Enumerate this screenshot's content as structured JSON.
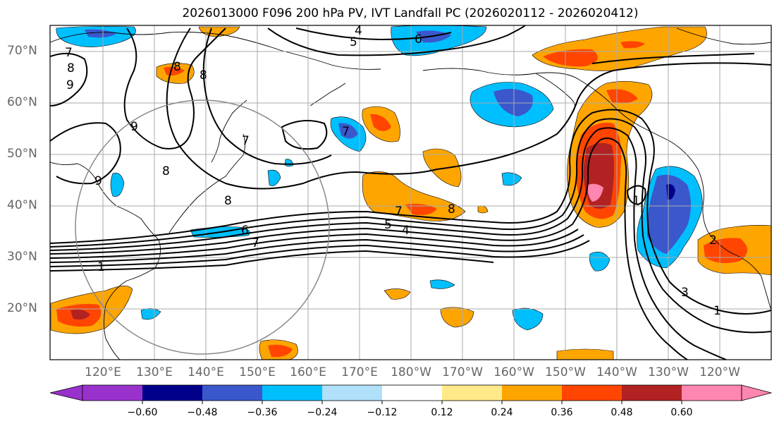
{
  "title": "2026013000 F096 200 hPa PV, IVT Landfall PC (2026020112 - 2026020412)",
  "latitude_labels": [
    "70°N",
    "60°N",
    "50°N",
    "40°N",
    "30°N",
    "20°N"
  ],
  "longitude_labels": [
    "120°E",
    "130°E",
    "140°E",
    "150°E",
    "160°E",
    "170°E",
    "180°W",
    "170°W",
    "160°W",
    "150°W",
    "140°W",
    "130°W",
    "120°W"
  ],
  "colorbar": {
    "colors": [
      "#9932cc",
      "#00008b",
      "#3a58cc",
      "#00bfff",
      "#b0e0fa",
      "#ffffff",
      "#ffe989",
      "#ffa500",
      "#ff4500",
      "#b22222",
      "#ff86b0"
    ],
    "ticks": [
      "−0.60",
      "−0.48",
      "−0.36",
      "−0.24",
      "−0.12",
      "0.12",
      "0.24",
      "0.36",
      "0.48",
      "0.60"
    ]
  },
  "contour_labels": [
    "4",
    "5",
    "6",
    "7",
    "8",
    "9",
    "1",
    "2",
    "3"
  ],
  "colors": {
    "contour": "#000000",
    "grid": "#aaaaaa",
    "circle": "#888888"
  }
}
